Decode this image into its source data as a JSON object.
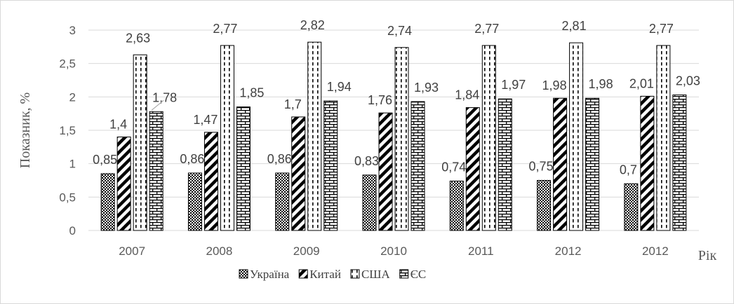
{
  "chart_data": {
    "type": "bar",
    "title": "",
    "xlabel": "Рік",
    "ylabel": "Показник, %",
    "ylim": [
      0,
      3
    ],
    "yticks": [
      "0",
      "0,5",
      "1",
      "1,5",
      "2",
      "2,5",
      "3"
    ],
    "ytick_values": [
      0,
      0.5,
      1,
      1.5,
      2,
      2.5,
      3
    ],
    "categories": [
      "2007",
      "2008",
      "2009",
      "2010",
      "2011",
      "2012",
      "2012"
    ],
    "grid": true,
    "legend_position": "bottom",
    "series": [
      {
        "name": "Україна",
        "pattern": "dots",
        "values": [
          0.85,
          0.86,
          0.86,
          0.83,
          0.74,
          0.75,
          0.7
        ],
        "labels": [
          "0,85",
          "0,86",
          "0,86",
          "0,83",
          "0,74",
          "0,75",
          "0,7"
        ]
      },
      {
        "name": "Китай",
        "pattern": "diagonal",
        "values": [
          1.4,
          1.47,
          1.7,
          1.76,
          1.84,
          1.98,
          2.01
        ],
        "labels": [
          "1,4",
          "1,47",
          "1,7",
          "1,76",
          "1,84",
          "1,98",
          "2,01"
        ]
      },
      {
        "name": "США",
        "pattern": "dashed-vertical",
        "values": [
          2.63,
          2.77,
          2.82,
          2.74,
          2.77,
          2.81,
          2.77
        ],
        "labels": [
          "2,63",
          "2,77",
          "2,82",
          "2,74",
          "2,77",
          "2,81",
          "2,77"
        ]
      },
      {
        "name": "ЄС",
        "pattern": "bricks",
        "values": [
          1.78,
          1.85,
          1.94,
          1.93,
          1.97,
          1.98,
          2.03
        ],
        "labels": [
          "1,78",
          "1,85",
          "1,94",
          "1,93",
          "1,97",
          "1,98",
          "2,03"
        ]
      }
    ],
    "colors": {
      "stroke": "#000000",
      "grid": "#d9d9d9",
      "axis": "#d9d9d9"
    }
  }
}
